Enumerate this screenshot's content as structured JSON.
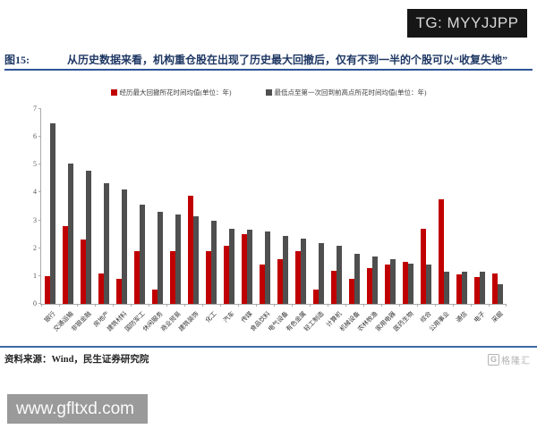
{
  "overlay": {
    "tg_badge": "TG: MYYJJPP",
    "watermark_url": "www.gfltxd.com",
    "brand_letter": "G",
    "brand_name": "格隆汇"
  },
  "figure": {
    "label": "图15:",
    "title": "从历史数据来看，机构重仓股在出现了历史最大回撤后，仅有不到一半的个股可以“收复失地”",
    "source": "资料来源：Wind，民生证券研究院"
  },
  "chart_data": {
    "type": "bar",
    "title": "",
    "xlabel": "",
    "ylabel": "",
    "ylim": [
      0,
      7
    ],
    "yticks": [
      0,
      1,
      2,
      3,
      4,
      5,
      6,
      7
    ],
    "grid": false,
    "legend_position": "top-center",
    "categories": [
      "银行",
      "交通运输",
      "非银金融",
      "房地产",
      "建筑材料",
      "国防军工",
      "休闲服务",
      "商业贸易",
      "建筑装饰",
      "化工",
      "汽车",
      "传媒",
      "食品饮料",
      "电气设备",
      "有色金属",
      "轻工制造",
      "计算机",
      "机械设备",
      "农林牧渔",
      "家用电器",
      "医药生物",
      "综合",
      "公用事业",
      "通信",
      "电子",
      "采掘"
    ],
    "series": [
      {
        "name": "经历最大回撤所花时间均值(单位：年)",
        "color": "#c00000",
        "values": [
          1.0,
          2.8,
          2.3,
          1.1,
          0.9,
          1.9,
          0.5,
          1.9,
          3.9,
          1.9,
          2.1,
          2.5,
          1.4,
          1.6,
          1.9,
          0.5,
          1.2,
          0.9,
          1.3,
          1.4,
          1.5,
          2.7,
          3.75,
          1.05,
          0.95,
          1.1
        ]
      },
      {
        "name": "最低点至第一次回到前高点所花时间均值(单位：年)",
        "color": "#4f4f4f",
        "values": [
          6.5,
          5.05,
          4.8,
          4.35,
          4.1,
          3.55,
          3.3,
          3.2,
          3.15,
          3.0,
          2.7,
          2.65,
          2.6,
          2.45,
          2.35,
          2.2,
          2.1,
          1.8,
          1.7,
          1.6,
          1.45,
          1.4,
          1.15,
          1.15,
          1.15,
          0.7
        ]
      }
    ]
  }
}
